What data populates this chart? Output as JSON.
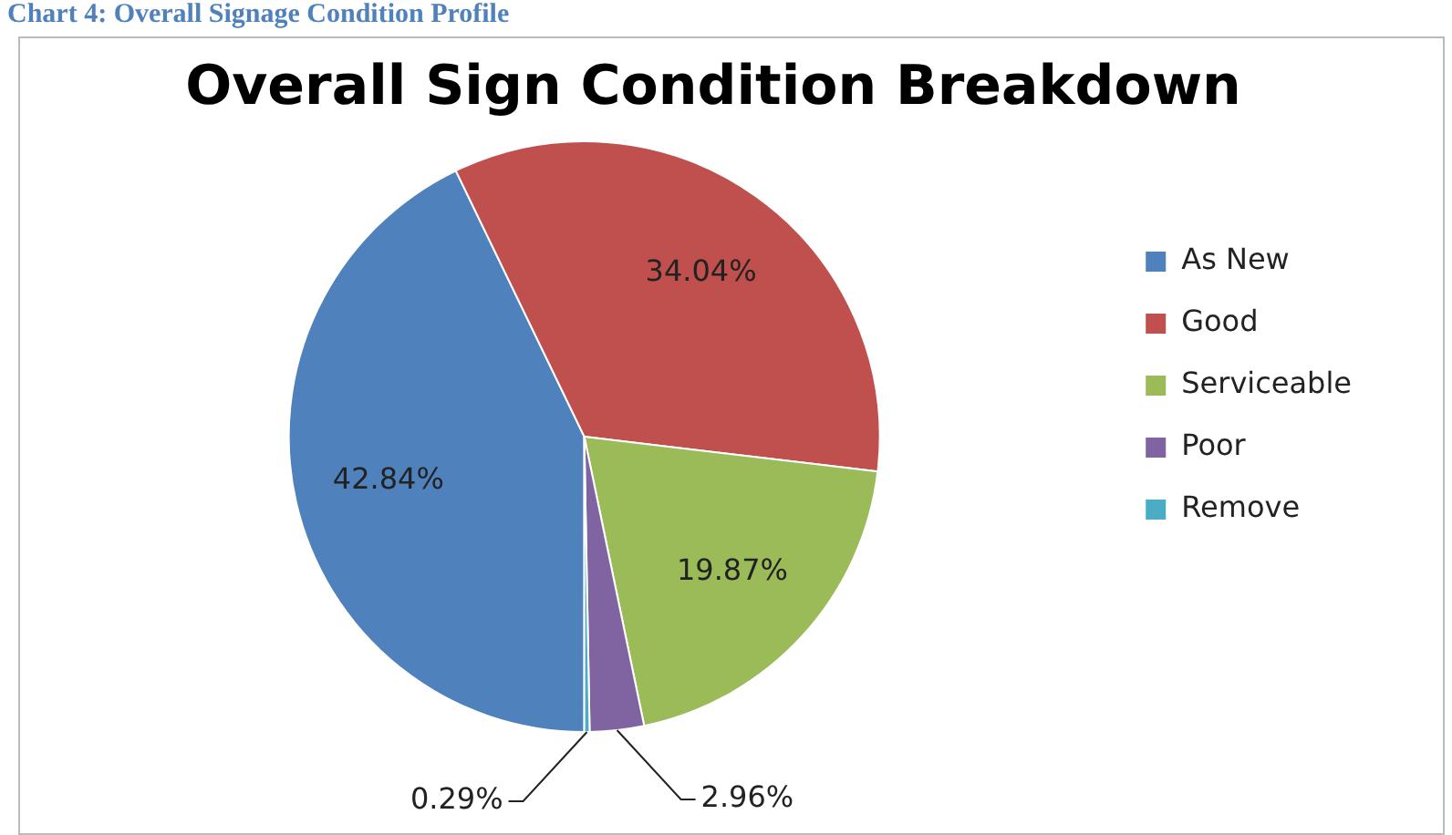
{
  "chart_data": {
    "type": "pie",
    "title": "Overall Sign Condition Breakdown",
    "annotations": [
      "Chart 4: Overall Signage Condition Profile"
    ],
    "categories": [
      "As New",
      "Good",
      "Serviceable",
      "Poor",
      "Remove"
    ],
    "values": [
      42.84,
      34.04,
      19.87,
      2.96,
      0.29
    ],
    "value_labels": [
      "42.84%",
      "34.04%",
      "19.87%",
      "2.96%",
      "0.29%"
    ],
    "colors": [
      "#4f81bd",
      "#c0504d",
      "#9bbb59",
      "#8064a2",
      "#4bacc6"
    ],
    "legend": "right"
  }
}
